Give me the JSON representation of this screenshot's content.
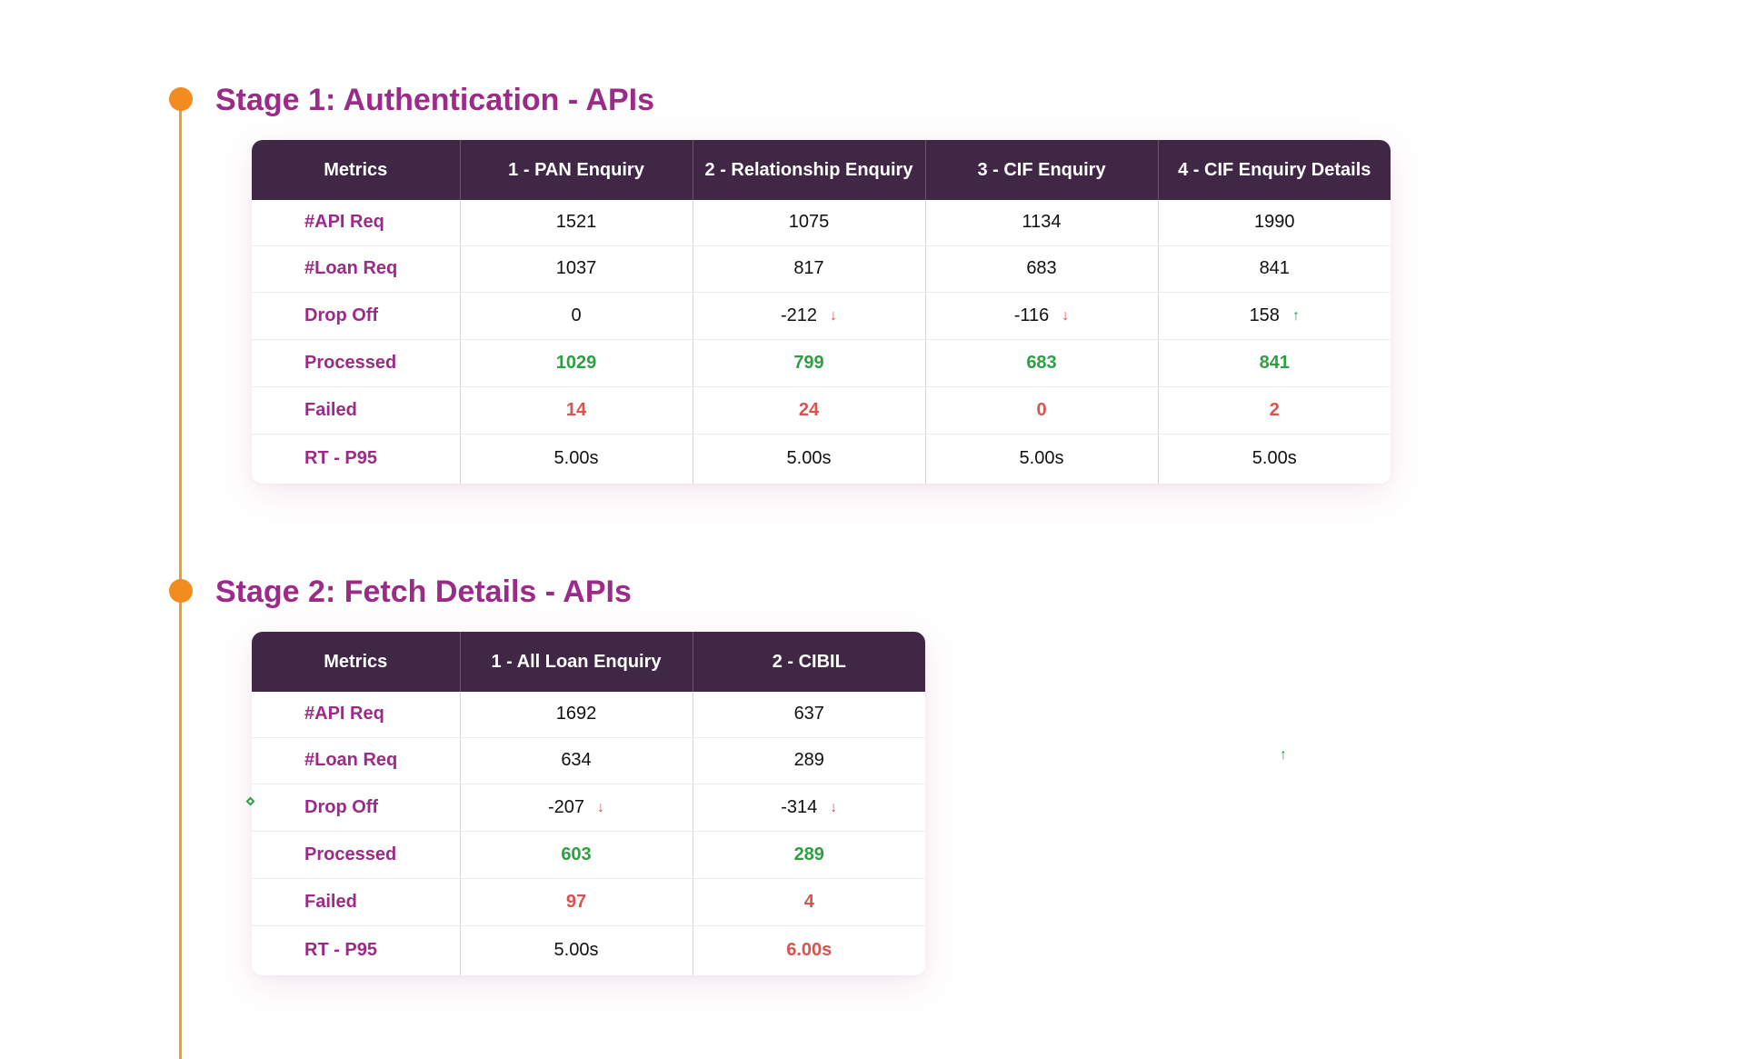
{
  "stage1": {
    "title": "Stage 1: Authentication - APIs",
    "headers": [
      "Metrics",
      "1 - PAN Enquiry",
      "2 - Relationship Enquiry",
      "3 - CIF Enquiry",
      "4 - CIF Enquiry Details"
    ],
    "rows": {
      "api_req": {
        "label": "#API Req",
        "values": [
          "1521",
          "1075",
          "1134",
          "1990"
        ]
      },
      "loan_req": {
        "label": "#Loan Req",
        "values": [
          "1037",
          "817",
          "683",
          "841"
        ]
      },
      "drop_off": {
        "label": "Drop Off",
        "values": [
          "0",
          "-212",
          "-116",
          "158"
        ],
        "arrows": [
          "",
          "↓",
          "↓",
          "↑"
        ]
      },
      "processed": {
        "label": "Processed",
        "values": [
          "1029",
          "799",
          "683",
          "841"
        ]
      },
      "failed": {
        "label": "Failed",
        "values": [
          "14",
          "24",
          "0",
          "2"
        ]
      },
      "rt_p95": {
        "label": "RT - P95",
        "values": [
          "5.00s",
          "5.00s",
          "5.00s",
          "5.00s"
        ]
      }
    }
  },
  "stage2": {
    "title": "Stage 2: Fetch Details - APIs",
    "headers": [
      "Metrics",
      "1 - All Loan Enquiry",
      "2 - CIBIL"
    ],
    "rows": {
      "api_req": {
        "label": "#API Req",
        "values": [
          "1692",
          "637"
        ]
      },
      "loan_req": {
        "label": "#Loan Req",
        "values": [
          "634",
          "289"
        ]
      },
      "drop_off": {
        "label": "Drop Off",
        "values": [
          "-207",
          "-314"
        ],
        "arrows": [
          "↓",
          "↓"
        ]
      },
      "processed": {
        "label": "Processed",
        "values": [
          "603",
          "289"
        ]
      },
      "failed": {
        "label": "Failed",
        "values": [
          "97",
          "4"
        ]
      },
      "rt_p95": {
        "label": "RT - P95",
        "values": [
          "5.00s",
          "6.00s"
        ]
      }
    }
  },
  "stray": {
    "up_arrow": "↑"
  },
  "colors": {
    "accent": "#9c2a88",
    "timeline": "#f28c1e",
    "header_bg": "#3f2745",
    "good": "#2ea043",
    "bad": "#d9534f"
  }
}
